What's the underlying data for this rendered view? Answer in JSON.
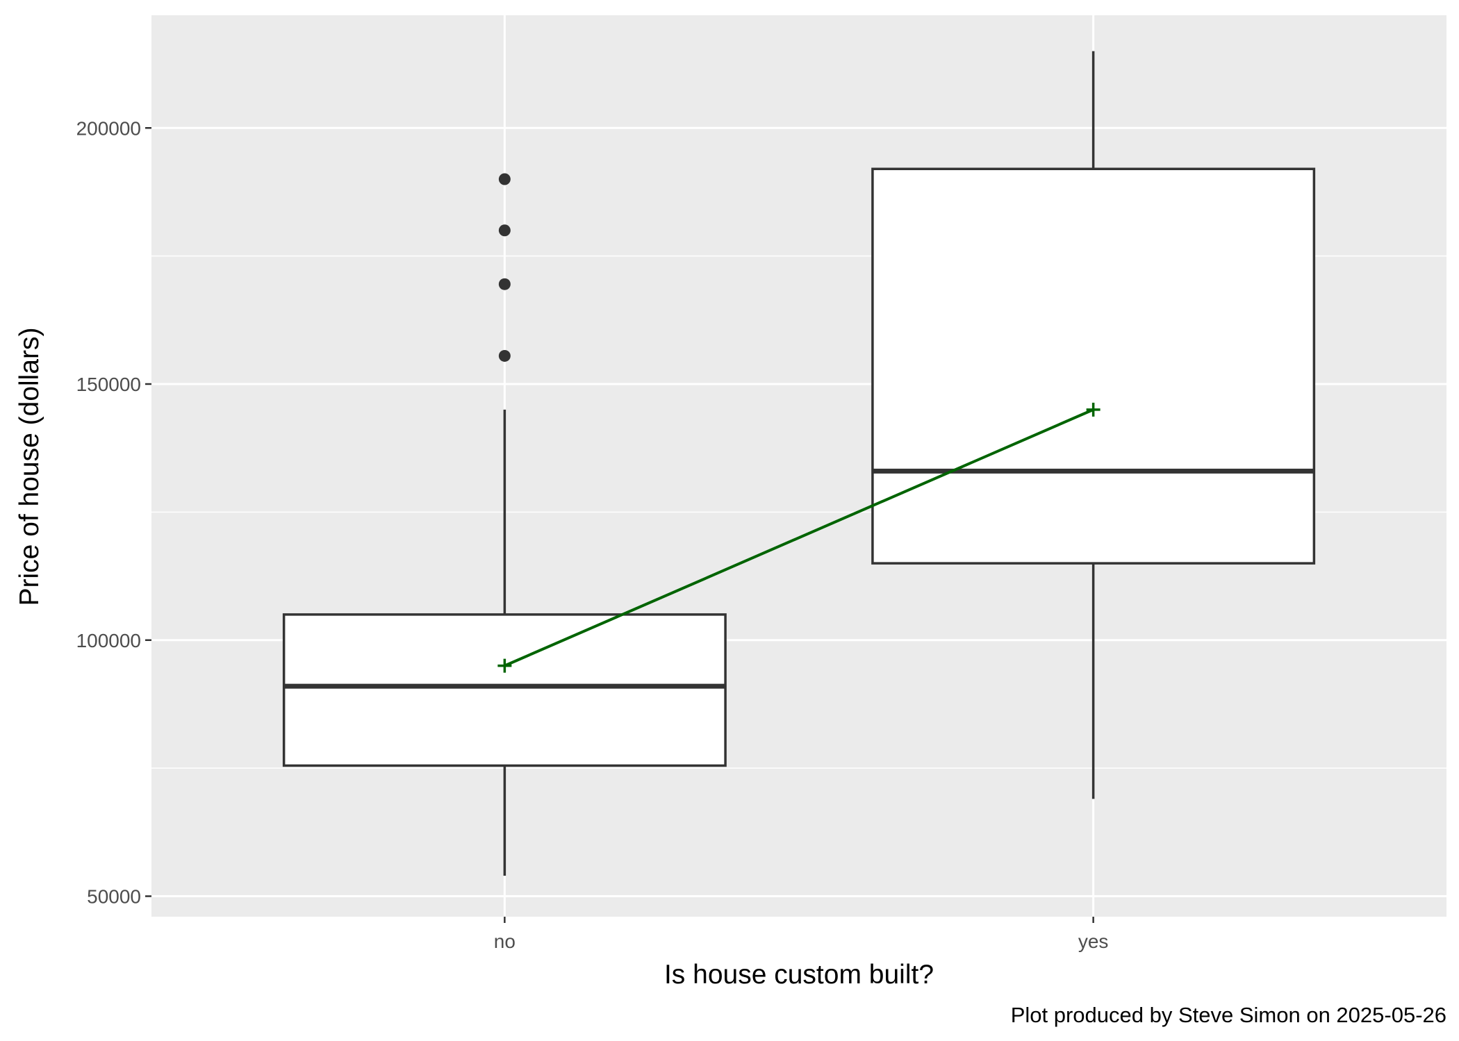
{
  "chart_data": {
    "type": "box",
    "xlabel": "Is house custom built?",
    "ylabel": "Price of house (dollars)",
    "caption": "Plot produced by Steve Simon on 2025-05-26",
    "categories": [
      "no",
      "yes"
    ],
    "ylim": [
      46000,
      222000
    ],
    "yticks": [
      50000,
      100000,
      150000,
      200000
    ],
    "yticklabels": [
      "50000",
      "100000",
      "150000",
      "200000"
    ],
    "y_minor_gridlines": [
      75000,
      125000,
      175000
    ],
    "grid": true,
    "boxes": [
      {
        "category": "no",
        "whisker_low": 54000,
        "q1": 75500,
        "median": 91000,
        "q3": 105000,
        "whisker_high": 145000,
        "outliers": [
          155500,
          169500,
          180000,
          190000
        ],
        "mean": 95000
      },
      {
        "category": "yes",
        "whisker_low": 69000,
        "q1": 115000,
        "median": 133000,
        "q3": 192000,
        "whisker_high": 215000,
        "outliers": [],
        "mean": 145000
      }
    ],
    "mean_line_color": "#006400",
    "box_stroke_color": "#333333",
    "panel_background": "#ebebeb",
    "gridline_color": "#ffffff"
  }
}
